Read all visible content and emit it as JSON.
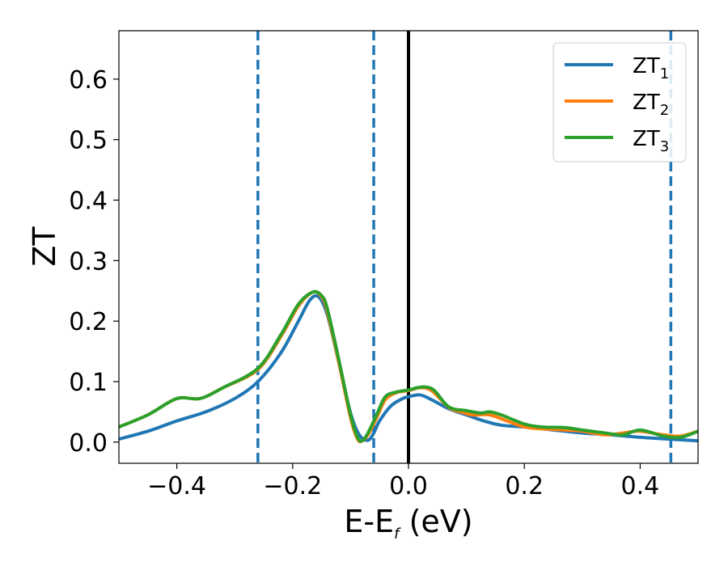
{
  "chart_data": {
    "type": "line",
    "xlabel": "E-E",
    "xlabel_sub": "f",
    "xlabel_unit": " (eV)",
    "ylabel": "ZT",
    "xlim": [
      -0.5,
      0.5
    ],
    "ylim": [
      -0.035,
      0.68
    ],
    "xticks": [
      -0.4,
      -0.2,
      0.0,
      0.2,
      0.4
    ],
    "xtick_labels": [
      "−0.4",
      "−0.2",
      "0.0",
      "0.2",
      "0.4"
    ],
    "yticks": [
      0.0,
      0.1,
      0.2,
      0.3,
      0.4,
      0.5,
      0.6
    ],
    "ytick_labels": [
      "0.0",
      "0.1",
      "0.2",
      "0.3",
      "0.4",
      "0.5",
      "0.6"
    ],
    "grid": false,
    "legend_position": "top-right",
    "vertical_lines": [
      {
        "x": -0.26,
        "style": "dashed",
        "color": "#1f77b4"
      },
      {
        "x": -0.06,
        "style": "dashed",
        "color": "#1f77b4"
      },
      {
        "x": 0.0,
        "style": "solid",
        "color": "#000000"
      },
      {
        "x": 0.453,
        "style": "dashed",
        "color": "#1f77b4"
      }
    ],
    "series": [
      {
        "name": "ZT",
        "name_sub": "1",
        "color": "#1f77b4",
        "x": [
          -0.5,
          -0.45,
          -0.4,
          -0.35,
          -0.3,
          -0.26,
          -0.22,
          -0.19,
          -0.17,
          -0.155,
          -0.14,
          -0.12,
          -0.1,
          -0.085,
          -0.07,
          -0.06,
          -0.05,
          -0.03,
          -0.01,
          0.0,
          0.02,
          0.04,
          0.07,
          0.1,
          0.13,
          0.16,
          0.2,
          0.25,
          0.3,
          0.35,
          0.4,
          0.45,
          0.5
        ],
        "y": [
          0.005,
          0.018,
          0.035,
          0.05,
          0.072,
          0.1,
          0.148,
          0.2,
          0.235,
          0.24,
          0.21,
          0.13,
          0.048,
          0.012,
          0.003,
          0.015,
          0.035,
          0.06,
          0.072,
          0.075,
          0.078,
          0.07,
          0.055,
          0.045,
          0.035,
          0.028,
          0.025,
          0.02,
          0.015,
          0.012,
          0.008,
          0.005,
          0.002
        ]
      },
      {
        "name": "ZT",
        "name_sub": "2",
        "color": "#ff7f0e",
        "x": [
          -0.5,
          -0.45,
          -0.4,
          -0.36,
          -0.32,
          -0.26,
          -0.22,
          -0.19,
          -0.165,
          -0.15,
          -0.14,
          -0.12,
          -0.1,
          -0.088,
          -0.08,
          -0.07,
          -0.055,
          -0.04,
          -0.02,
          0.0,
          0.02,
          0.04,
          0.07,
          0.09,
          0.11,
          0.14,
          0.17,
          0.2,
          0.23,
          0.27,
          0.3,
          0.34,
          0.37,
          0.4,
          0.44,
          0.47,
          0.5
        ],
        "y": [
          0.025,
          0.045,
          0.072,
          0.072,
          0.09,
          0.12,
          0.175,
          0.225,
          0.248,
          0.24,
          0.215,
          0.13,
          0.04,
          0.005,
          0.002,
          0.012,
          0.04,
          0.07,
          0.082,
          0.085,
          0.09,
          0.085,
          0.057,
          0.05,
          0.045,
          0.045,
          0.035,
          0.025,
          0.022,
          0.02,
          0.018,
          0.012,
          0.015,
          0.018,
          0.012,
          0.01,
          0.018
        ]
      },
      {
        "name": "ZT",
        "name_sub": "3",
        "color": "#2ca02c",
        "x": [
          -0.5,
          -0.45,
          -0.4,
          -0.36,
          -0.32,
          -0.26,
          -0.22,
          -0.19,
          -0.165,
          -0.15,
          -0.14,
          -0.12,
          -0.1,
          -0.088,
          -0.08,
          -0.07,
          -0.055,
          -0.04,
          -0.02,
          0.0,
          0.015,
          0.03,
          0.045,
          0.07,
          0.1,
          0.125,
          0.14,
          0.16,
          0.2,
          0.23,
          0.27,
          0.3,
          0.34,
          0.37,
          0.4,
          0.44,
          0.47,
          0.5
        ],
        "y": [
          0.025,
          0.045,
          0.072,
          0.072,
          0.09,
          0.122,
          0.178,
          0.228,
          0.248,
          0.242,
          0.22,
          0.135,
          0.045,
          0.008,
          0.002,
          0.015,
          0.045,
          0.075,
          0.083,
          0.086,
          0.09,
          0.091,
          0.085,
          0.058,
          0.052,
          0.048,
          0.05,
          0.045,
          0.03,
          0.025,
          0.024,
          0.02,
          0.015,
          0.012,
          0.02,
          0.01,
          0.008,
          0.018
        ]
      }
    ]
  }
}
